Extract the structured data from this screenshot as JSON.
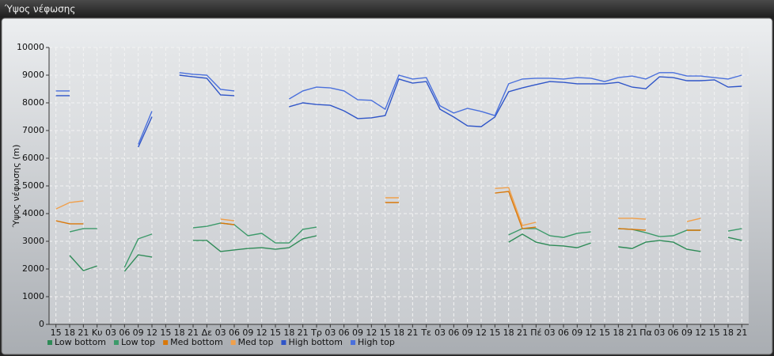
{
  "window_title": "Ύψος νέφωσης",
  "chart_data": {
    "type": "line",
    "y_label": "Ύψος νέφωσης (m)",
    "categories": [
      "15",
      "18",
      "21",
      "Κυ",
      "03",
      "06",
      "09",
      "12",
      "15",
      "18",
      "21",
      "Δε",
      "03",
      "06",
      "09",
      "12",
      "15",
      "18",
      "21",
      "Τρ",
      "03",
      "06",
      "09",
      "12",
      "15",
      "18",
      "21",
      "Τε",
      "03",
      "06",
      "09",
      "12",
      "15",
      "18",
      "21",
      "Πέ",
      "03",
      "06",
      "09",
      "12",
      "15",
      "18",
      "21",
      "Πα",
      "03",
      "06",
      "09",
      "12",
      "15",
      "18",
      "21"
    ],
    "ylim": [
      0,
      10000
    ],
    "yticks": [
      0,
      1000,
      2000,
      3000,
      4000,
      5000,
      6000,
      7000,
      8000,
      9000,
      10000
    ],
    "grid": true,
    "series": [
      {
        "name": "Low bottom",
        "color": "#2e8b57",
        "values": [
          null,
          2490,
          1940,
          2110,
          null,
          1910,
          2510,
          2430,
          null,
          null,
          3030,
          3030,
          2630,
          2690,
          2740,
          2770,
          2710,
          2770,
          3090,
          3200,
          null,
          null,
          null,
          null,
          null,
          null,
          null,
          null,
          null,
          null,
          null,
          null,
          null,
          2970,
          3260,
          2970,
          2860,
          2830,
          2770,
          2940,
          null,
          2800,
          2740,
          2970,
          3030,
          2970,
          2710,
          2630,
          null,
          3140,
          3030
        ]
      },
      {
        "name": "Low top",
        "color": "#3c9a6a",
        "values": [
          null,
          3340,
          3460,
          3460,
          null,
          2060,
          3090,
          3260,
          null,
          null,
          3490,
          3540,
          3660,
          3600,
          3200,
          3290,
          2940,
          2940,
          3430,
          3510,
          null,
          null,
          null,
          null,
          null,
          null,
          null,
          null,
          null,
          null,
          null,
          null,
          null,
          3230,
          3460,
          3460,
          3200,
          3140,
          3290,
          3340,
          null,
          3460,
          3430,
          3310,
          3170,
          3200,
          3400,
          3400,
          null,
          3370,
          3460
        ]
      },
      {
        "name": "Med bottom",
        "color": "#d9780a",
        "values": [
          3740,
          3630,
          3630,
          null,
          null,
          null,
          null,
          null,
          null,
          null,
          null,
          null,
          3660,
          3600,
          null,
          null,
          null,
          null,
          null,
          null,
          null,
          null,
          null,
          null,
          4400,
          4400,
          null,
          null,
          null,
          null,
          null,
          null,
          4740,
          4800,
          3460,
          3510,
          null,
          null,
          null,
          null,
          null,
          3460,
          3430,
          3400,
          null,
          null,
          3400,
          3400,
          null,
          null,
          null
        ]
      },
      {
        "name": "Med top",
        "color": "#f0a04b",
        "values": [
          4170,
          4400,
          4460,
          null,
          null,
          null,
          null,
          null,
          null,
          null,
          null,
          null,
          3800,
          3740,
          null,
          null,
          null,
          null,
          null,
          null,
          null,
          null,
          null,
          null,
          4570,
          4570,
          null,
          null,
          null,
          null,
          null,
          null,
          4910,
          4940,
          3570,
          3690,
          null,
          null,
          null,
          null,
          null,
          3830,
          3830,
          3800,
          null,
          null,
          3710,
          3830,
          null,
          null,
          null
        ]
      },
      {
        "name": "High bottom",
        "color": "#2f55c8",
        "values": [
          8260,
          8260,
          null,
          null,
          null,
          null,
          6400,
          7500,
          null,
          9000,
          8940,
          8890,
          8290,
          8260,
          null,
          null,
          null,
          7860,
          8000,
          7940,
          7910,
          7710,
          7430,
          7460,
          7540,
          8860,
          8710,
          8770,
          7770,
          7490,
          7170,
          7140,
          7490,
          8400,
          8540,
          8660,
          8770,
          8740,
          8690,
          8690,
          8690,
          8740,
          8570,
          8510,
          8940,
          8910,
          8800,
          8800,
          8830,
          8570,
          8600
        ]
      },
      {
        "name": "High top",
        "color": "#4a70dc",
        "values": [
          8430,
          8430,
          null,
          null,
          null,
          null,
          6500,
          7700,
          null,
          9090,
          9030,
          9000,
          8490,
          8430,
          null,
          null,
          null,
          8140,
          8430,
          8570,
          8540,
          8430,
          8110,
          8090,
          7770,
          9000,
          8860,
          8910,
          7890,
          7630,
          7800,
          7690,
          7540,
          8690,
          8860,
          8890,
          8890,
          8860,
          8910,
          8890,
          8770,
          8910,
          8970,
          8860,
          9090,
          9090,
          8970,
          8970,
          8910,
          8860,
          9000
        ]
      }
    ]
  }
}
